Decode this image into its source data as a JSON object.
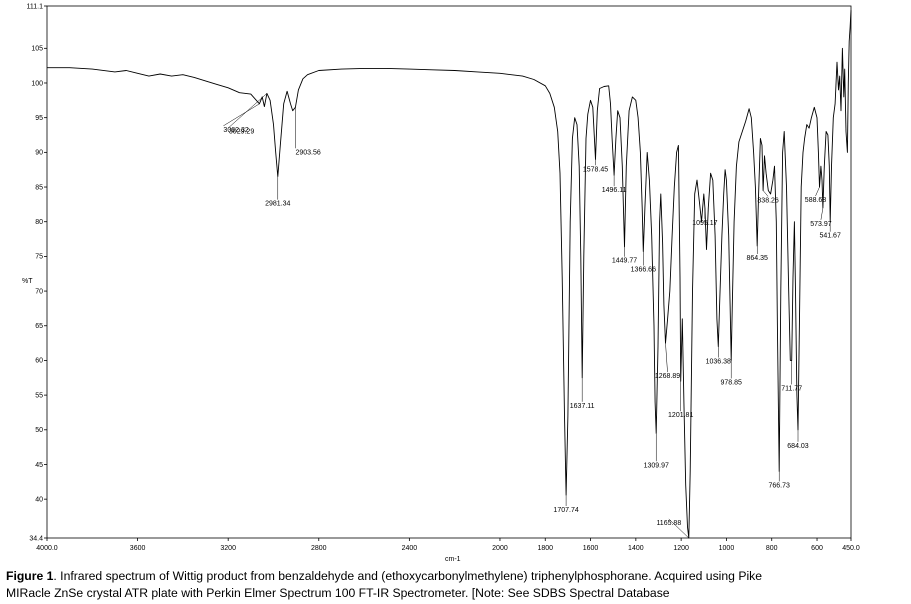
{
  "chart_data": {
    "type": "line",
    "xlabel": "cm-1",
    "ylabel": "%T",
    "xlim": [
      4000.0,
      450.0
    ],
    "ylim": [
      34.4,
      111.1
    ],
    "x_ticks": [
      {
        "v": 4000,
        "label": "4000.0"
      },
      {
        "v": 3600,
        "label": "3600"
      },
      {
        "v": 3200,
        "label": "3200"
      },
      {
        "v": 2800,
        "label": "2800"
      },
      {
        "v": 2400,
        "label": "2400"
      },
      {
        "v": 2000,
        "label": "2000"
      },
      {
        "v": 1800,
        "label": "1800"
      },
      {
        "v": 1600,
        "label": "1600"
      },
      {
        "v": 1400,
        "label": "1400"
      },
      {
        "v": 1200,
        "label": "1200"
      },
      {
        "v": 1000,
        "label": "1000"
      },
      {
        "v": 800,
        "label": "800"
      },
      {
        "v": 600,
        "label": "600"
      },
      {
        "v": 450,
        "label": "450.0"
      }
    ],
    "y_ticks": [
      {
        "v": 111.1,
        "label": "111.1"
      },
      {
        "v": 105,
        "label": "105"
      },
      {
        "v": 100,
        "label": "100"
      },
      {
        "v": 95,
        "label": "95"
      },
      {
        "v": 90,
        "label": "90"
      },
      {
        "v": 85,
        "label": "85"
      },
      {
        "v": 80,
        "label": "80"
      },
      {
        "v": 75,
        "label": "75"
      },
      {
        "v": 70,
        "label": "70"
      },
      {
        "v": 65,
        "label": "65"
      },
      {
        "v": 60,
        "label": "60"
      },
      {
        "v": 55,
        "label": "55"
      },
      {
        "v": 50,
        "label": "50"
      },
      {
        "v": 45,
        "label": "45"
      },
      {
        "v": 40,
        "label": "40"
      },
      {
        "v": 34.4,
        "label": "34.4"
      }
    ],
    "series": [
      {
        "color": "#000000",
        "points": [
          [
            4000,
            102.2
          ],
          [
            3900,
            102.2
          ],
          [
            3800,
            102.0
          ],
          [
            3700,
            101.6
          ],
          [
            3650,
            101.8
          ],
          [
            3600,
            101.4
          ],
          [
            3550,
            101.0
          ],
          [
            3500,
            101.3
          ],
          [
            3450,
            101.0
          ],
          [
            3400,
            101.2
          ],
          [
            3350,
            100.8
          ],
          [
            3300,
            100.3
          ],
          [
            3250,
            99.8
          ],
          [
            3200,
            99.3
          ],
          [
            3150,
            98.6
          ],
          [
            3100,
            98.4
          ],
          [
            3062,
            97.0
          ],
          [
            3050,
            98.0
          ],
          [
            3040,
            96.6
          ],
          [
            3029,
            98.5
          ],
          [
            3015,
            97.5
          ],
          [
            3000,
            94.0
          ],
          [
            2990,
            90.0
          ],
          [
            2981,
            86.5
          ],
          [
            2970,
            91.0
          ],
          [
            2955,
            97.0
          ],
          [
            2940,
            98.8
          ],
          [
            2925,
            97.0
          ],
          [
            2915,
            96.0
          ],
          [
            2903,
            96.5
          ],
          [
            2890,
            99.0
          ],
          [
            2870,
            100.6
          ],
          [
            2850,
            101.2
          ],
          [
            2800,
            101.8
          ],
          [
            2700,
            102.0
          ],
          [
            2600,
            102.1
          ],
          [
            2500,
            102.1
          ],
          [
            2400,
            102.0
          ],
          [
            2300,
            101.9
          ],
          [
            2200,
            101.8
          ],
          [
            2100,
            101.6
          ],
          [
            2000,
            101.4
          ],
          [
            1900,
            101.0
          ],
          [
            1850,
            100.5
          ],
          [
            1800,
            99.6
          ],
          [
            1780,
            98.5
          ],
          [
            1760,
            96.5
          ],
          [
            1745,
            93.0
          ],
          [
            1735,
            87.0
          ],
          [
            1725,
            72.0
          ],
          [
            1715,
            52.0
          ],
          [
            1708,
            40.6
          ],
          [
            1700,
            52.0
          ],
          [
            1690,
            80.0
          ],
          [
            1680,
            92.0
          ],
          [
            1670,
            95.0
          ],
          [
            1660,
            94.0
          ],
          [
            1650,
            88.0
          ],
          [
            1643,
            75.0
          ],
          [
            1637,
            57.5
          ],
          [
            1630,
            75.0
          ],
          [
            1620,
            92.0
          ],
          [
            1612,
            95.5
          ],
          [
            1600,
            97.5
          ],
          [
            1590,
            96.5
          ],
          [
            1578,
            89.0
          ],
          [
            1570,
            96.0
          ],
          [
            1560,
            99.2
          ],
          [
            1540,
            99.5
          ],
          [
            1520,
            99.6
          ],
          [
            1512,
            97.0
          ],
          [
            1505,
            92.0
          ],
          [
            1496,
            86.7
          ],
          [
            1488,
            92.0
          ],
          [
            1480,
            96.0
          ],
          [
            1470,
            95.0
          ],
          [
            1460,
            88.0
          ],
          [
            1450,
            76.4
          ],
          [
            1442,
            88.0
          ],
          [
            1430,
            96.0
          ],
          [
            1415,
            98.0
          ],
          [
            1400,
            97.5
          ],
          [
            1390,
            95.0
          ],
          [
            1380,
            90.0
          ],
          [
            1372,
            82.0
          ],
          [
            1367,
            75.7
          ],
          [
            1360,
            82.0
          ],
          [
            1350,
            90.0
          ],
          [
            1340,
            86.0
          ],
          [
            1330,
            78.0
          ],
          [
            1320,
            65.0
          ],
          [
            1315,
            54.0
          ],
          [
            1310,
            49.5
          ],
          [
            1302,
            62.0
          ],
          [
            1295,
            80.0
          ],
          [
            1290,
            84.0
          ],
          [
            1282,
            77.0
          ],
          [
            1276,
            68.0
          ],
          [
            1269,
            62.5
          ],
          [
            1260,
            66.0
          ],
          [
            1250,
            70.0
          ],
          [
            1240,
            78.0
          ],
          [
            1230,
            85.0
          ],
          [
            1220,
            90.0
          ],
          [
            1212,
            91.0
          ],
          [
            1205,
            72.0
          ],
          [
            1202,
            57.0
          ],
          [
            1195,
            66.0
          ],
          [
            1188,
            54.0
          ],
          [
            1180,
            42.0
          ],
          [
            1172,
            36.0
          ],
          [
            1166,
            34.4
          ],
          [
            1160,
            44.0
          ],
          [
            1150,
            70.0
          ],
          [
            1140,
            84.0
          ],
          [
            1130,
            86.0
          ],
          [
            1120,
            83.0
          ],
          [
            1110,
            80.0
          ],
          [
            1100,
            84.0
          ],
          [
            1095,
            82.0
          ],
          [
            1088,
            76.0
          ],
          [
            1080,
            82.0
          ],
          [
            1070,
            87.0
          ],
          [
            1060,
            86.0
          ],
          [
            1050,
            78.0
          ],
          [
            1042,
            66.0
          ],
          [
            1036,
            62.0
          ],
          [
            1030,
            68.0
          ],
          [
            1020,
            78.0
          ],
          [
            1012,
            84.0
          ],
          [
            1006,
            87.5
          ],
          [
            1000,
            86.0
          ],
          [
            990,
            78.0
          ],
          [
            984,
            68.0
          ],
          [
            979,
            60.0
          ],
          [
            974,
            68.0
          ],
          [
            966,
            80.0
          ],
          [
            956,
            88.0
          ],
          [
            945,
            91.5
          ],
          [
            930,
            93.0
          ],
          [
            915,
            94.5
          ],
          [
            900,
            96.3
          ],
          [
            890,
            95.0
          ],
          [
            880,
            90.0
          ],
          [
            872,
            85.0
          ],
          [
            864,
            76.5
          ],
          [
            858,
            84.0
          ],
          [
            850,
            92.0
          ],
          [
            843,
            91.0
          ],
          [
            838,
            84.5
          ],
          [
            832,
            89.5
          ],
          [
            825,
            87.0
          ],
          [
            815,
            84.5
          ],
          [
            805,
            84.0
          ],
          [
            795,
            86.0
          ],
          [
            788,
            88.0
          ],
          [
            780,
            80.0
          ],
          [
            775,
            65.0
          ],
          [
            767,
            44.0
          ],
          [
            760,
            70.0
          ],
          [
            752,
            90.0
          ],
          [
            745,
            93.0
          ],
          [
            735,
            85.0
          ],
          [
            725,
            70.0
          ],
          [
            718,
            60.0
          ],
          [
            712,
            60.0
          ],
          [
            706,
            72.0
          ],
          [
            700,
            80.0
          ],
          [
            695,
            70.0
          ],
          [
            689,
            55.0
          ],
          [
            684,
            50.0
          ],
          [
            678,
            65.0
          ],
          [
            670,
            85.0
          ],
          [
            662,
            90.0
          ],
          [
            655,
            92.0
          ],
          [
            645,
            94.0
          ],
          [
            635,
            93.5
          ],
          [
            625,
            95.0
          ],
          [
            612,
            96.5
          ],
          [
            600,
            95.0
          ],
          [
            594,
            90.0
          ],
          [
            589,
            85.0
          ],
          [
            583,
            88.0
          ],
          [
            578,
            86.0
          ],
          [
            574,
            82.0
          ],
          [
            568,
            88.0
          ],
          [
            560,
            93.0
          ],
          [
            552,
            92.5
          ],
          [
            546,
            88.0
          ],
          [
            542,
            80.0
          ],
          [
            536,
            88.0
          ],
          [
            528,
            95.0
          ],
          [
            520,
            97.0
          ],
          [
            512,
            103.0
          ],
          [
            505,
            99.0
          ],
          [
            500,
            101.0
          ],
          [
            494,
            96.0
          ],
          [
            488,
            105.0
          ],
          [
            482,
            98.0
          ],
          [
            478,
            102.0
          ],
          [
            472,
            93.0
          ],
          [
            466,
            90.0
          ],
          [
            462,
            100.0
          ],
          [
            458,
            106.0
          ],
          [
            454,
            108.0
          ],
          [
            450,
            110.5
          ]
        ]
      }
    ],
    "annotations": [
      {
        "label": "3062.32",
        "x": 3062,
        "y": 97.0
      },
      {
        "label": "3029.29",
        "x": 3029,
        "y": 98.5
      },
      {
        "label": "2903.56",
        "x": 2903,
        "y": 96.5
      },
      {
        "label": "2981.34",
        "x": 2981,
        "y": 86.5
      },
      {
        "label": "1578.45",
        "x": 1578,
        "y": 89.0
      },
      {
        "label": "1496.11",
        "x": 1496,
        "y": 86.7
      },
      {
        "label": "1449.77",
        "x": 1450,
        "y": 76.4
      },
      {
        "label": "1366.66",
        "x": 1367,
        "y": 75.7
      },
      {
        "label": "1095.17",
        "x": 1095,
        "y": 82.0
      },
      {
        "label": "864.35",
        "x": 864,
        "y": 76.5
      },
      {
        "label": "838.26",
        "x": 838,
        "y": 84.5
      },
      {
        "label": "588.68",
        "x": 589,
        "y": 85.0
      },
      {
        "label": "573.97",
        "x": 574,
        "y": 82.0
      },
      {
        "label": "541.67",
        "x": 542,
        "y": 80.0
      },
      {
        "label": "1268.89",
        "x": 1269,
        "y": 62.5
      },
      {
        "label": "1036.38",
        "x": 1036,
        "y": 62.0
      },
      {
        "label": "978.85",
        "x": 979,
        "y": 60.0
      },
      {
        "label": "711.77",
        "x": 712,
        "y": 60.0
      },
      {
        "label": "1637.11",
        "x": 1637,
        "y": 57.5
      },
      {
        "label": "1201.81",
        "x": 1202,
        "y": 57.0
      },
      {
        "label": "1309.97",
        "x": 1310,
        "y": 49.5
      },
      {
        "label": "684.03",
        "x": 684,
        "y": 50.0
      },
      {
        "label": "766.73",
        "x": 767,
        "y": 44.0
      },
      {
        "label": "1707.74",
        "x": 1708,
        "y": 40.6
      },
      {
        "label": "1165.88",
        "x": 1166,
        "y": 34.4
      }
    ]
  },
  "caption": {
    "prefix": "Figure 1",
    "line1": ". Infrared spectrum of Wittig product from benzaldehyde and (ethoxycarbonylmethylene) triphenylphosphorane. Acquired using Pike",
    "line2": "MIRacle ZnSe crystal ATR plate with Perkin Elmer Spectrum 100 FT-IR Spectrometer. [Note: See SDBS Spectral Database"
  }
}
